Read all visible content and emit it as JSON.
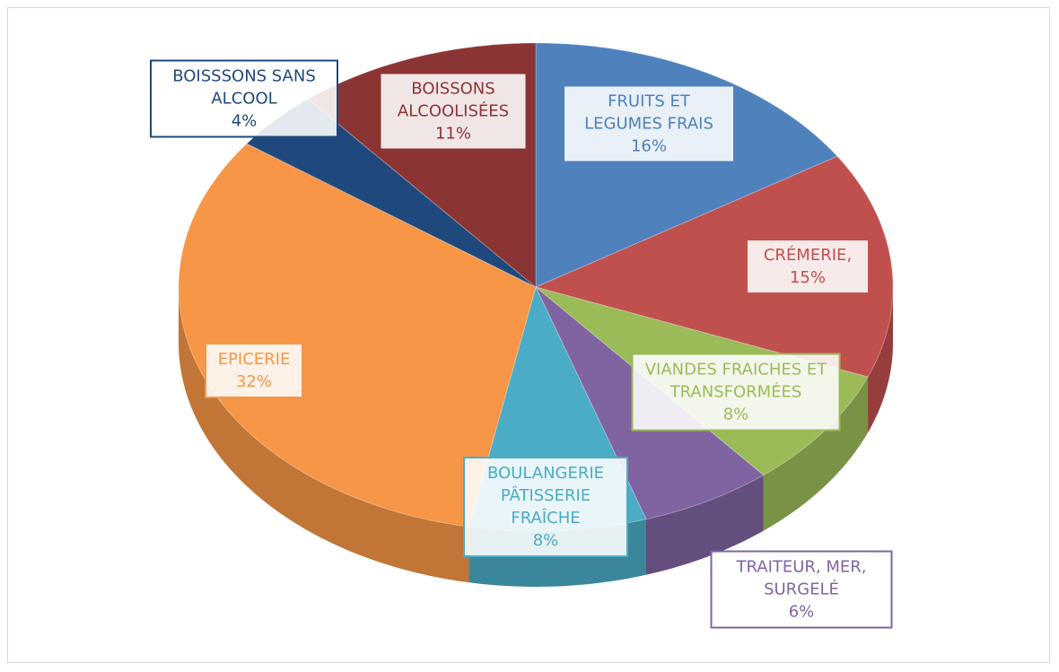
{
  "chart_data": {
    "type": "pie3d",
    "categories": [
      "FRUITS ET LEGUMES FRAIS",
      "CRÉMERIE,",
      "VIANDES FRAICHES ET TRANSFORMÉES",
      "TRAITEUR, MER, SURGELÉ",
      "BOULANGERIE PÂTISSERIE FRAÎCHE",
      "EPICERIE",
      "BOISSSONS SANS ALCOOL",
      "BOISSONS ALCOOLISÉES"
    ],
    "values": [
      16,
      15,
      8,
      6,
      8,
      32,
      4,
      11
    ],
    "value_labels": [
      "16%",
      "15%",
      "8%",
      "6%",
      "8%",
      "32%",
      "4%",
      "11%"
    ],
    "colors": [
      "#4f81bd",
      "#c0504d",
      "#9bbb59",
      "#8064a2",
      "#4bacc6",
      "#f79646",
      "#1f497d",
      "#8b3434"
    ]
  }
}
